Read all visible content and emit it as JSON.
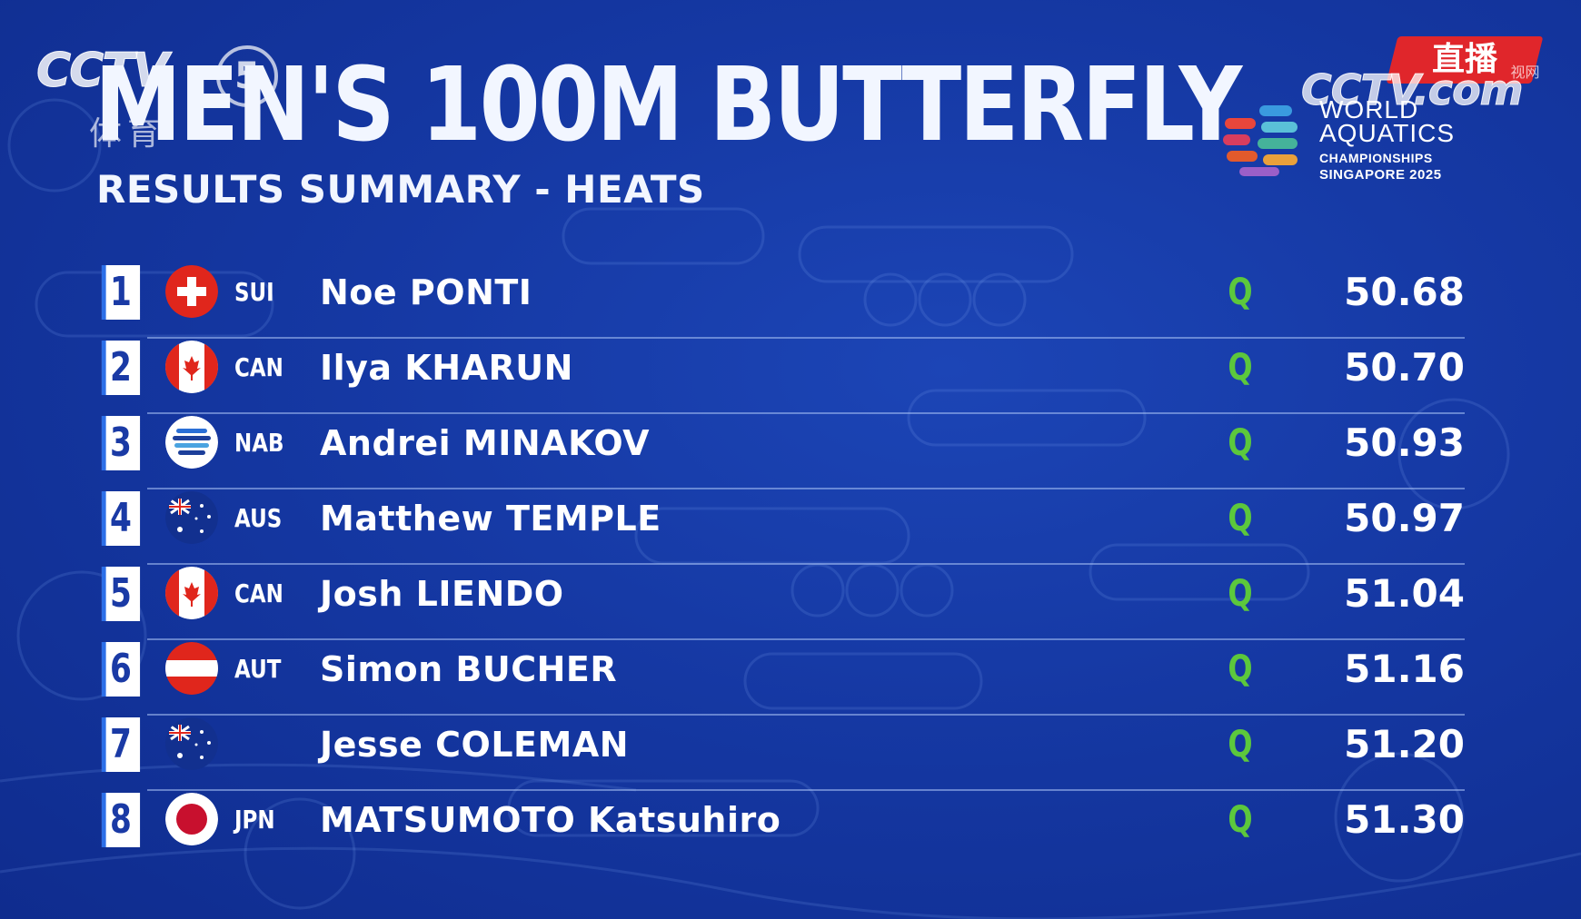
{
  "broadcaster": {
    "logo_text": "CCTV",
    "channel_number": "5",
    "channel_sub": "体育",
    "live_badge": "直播",
    "badge_watermark": "视网",
    "site_text": "CCTV.com"
  },
  "event": {
    "title": "MEN'S 100M BUTTERFLY",
    "subtitle": "RESULTS SUMMARY - HEATS",
    "championship_line1": "WORLD",
    "championship_line2": "AQUATICS",
    "championship_line3": "CHAMPIONSHIPS",
    "championship_line4": "SINGAPORE 2025"
  },
  "colors": {
    "background": "#1538a3",
    "qualified": "#5cc83c",
    "rank_box": "#ffffff"
  },
  "results": [
    {
      "rank": "1",
      "country": "SUI",
      "flag": "switzerland-flag-icon",
      "name": "Noe PONTI",
      "qualified": "Q",
      "time": "50.68"
    },
    {
      "rank": "2",
      "country": "CAN",
      "flag": "canada-flag-icon",
      "name": "Ilya KHARUN",
      "qualified": "Q",
      "time": "50.70"
    },
    {
      "rank": "3",
      "country": "NAB",
      "flag": "neutral-athlete-flag-icon",
      "name": "Andrei MINAKOV",
      "qualified": "Q",
      "time": "50.93"
    },
    {
      "rank": "4",
      "country": "AUS",
      "flag": "australia-flag-icon",
      "name": "Matthew TEMPLE",
      "qualified": "Q",
      "time": "50.97"
    },
    {
      "rank": "5",
      "country": "CAN",
      "flag": "canada-flag-icon",
      "name": "Josh LIENDO",
      "qualified": "Q",
      "time": "51.04"
    },
    {
      "rank": "6",
      "country": "AUT",
      "flag": "austria-flag-icon",
      "name": "Simon BUCHER",
      "qualified": "Q",
      "time": "51.16"
    },
    {
      "rank": "7",
      "country": "",
      "flag": "australia-flag-icon",
      "name": "Jesse COLEMAN",
      "qualified": "Q",
      "time": "51.20"
    },
    {
      "rank": "8",
      "country": "JPN",
      "flag": "japan-flag-icon",
      "name": "MATSUMOTO Katsuhiro",
      "qualified": "Q",
      "time": "51.30"
    }
  ]
}
